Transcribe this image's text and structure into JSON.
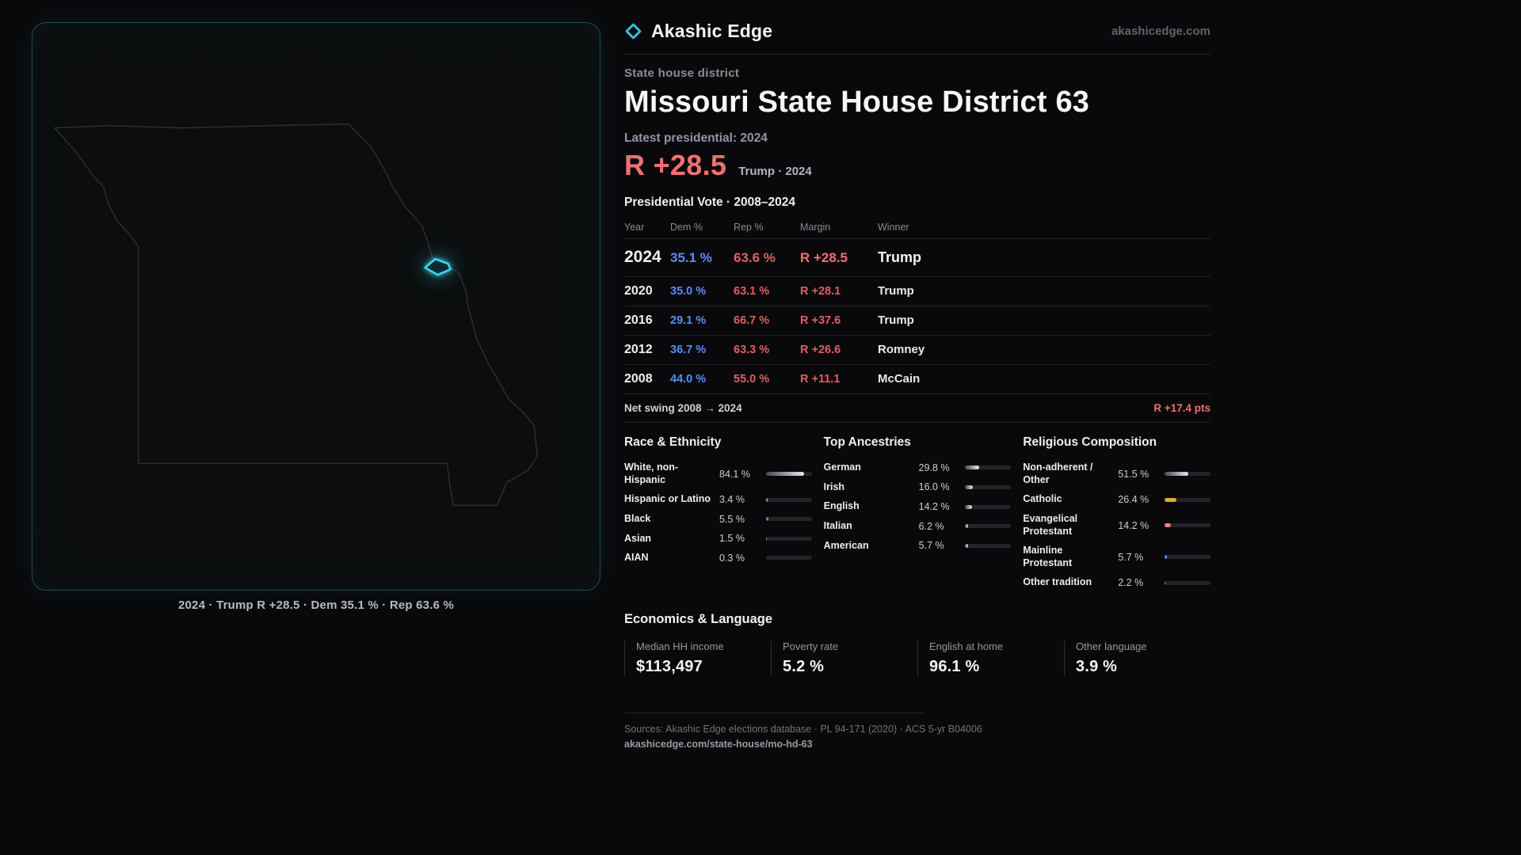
{
  "brand": {
    "name": "Akashic Edge",
    "domain": "akashicedge.com"
  },
  "map": {
    "caption": "2024 · Trump R +28.5 · Dem 35.1 % · Rep 63.6 %",
    "accent": "#3fd6ec",
    "region": "Missouri",
    "marker": "district-63"
  },
  "header": {
    "kicker": "State house district",
    "title": "Missouri State House District 63",
    "latest_label": "Latest presidential: 2024",
    "headline_margin": "R +28.5",
    "headline_sub": "Trump · 2024"
  },
  "chart_data": [
    {
      "id": "presidential-vote",
      "type": "table",
      "title": "Presidential Vote · 2008–2024",
      "columns": {
        "year": "Year",
        "dem": "Dem %",
        "rep": "Rep %",
        "margin": "Margin",
        "winner": "Winner"
      },
      "rows": [
        {
          "year": "2024",
          "dem": "35.1 %",
          "rep": "63.6 %",
          "margin": "R +28.5",
          "winner": "Trump"
        },
        {
          "year": "2020",
          "dem": "35.0 %",
          "rep": "63.1 %",
          "margin": "R +28.1",
          "winner": "Trump"
        },
        {
          "year": "2016",
          "dem": "29.1 %",
          "rep": "66.7 %",
          "margin": "R +37.6",
          "winner": "Trump"
        },
        {
          "year": "2012",
          "dem": "36.7 %",
          "rep": "63.3 %",
          "margin": "R +26.6",
          "winner": "Romney"
        },
        {
          "year": "2008",
          "dem": "44.0 %",
          "rep": "55.0 %",
          "margin": "R +11.1",
          "winner": "McCain"
        }
      ],
      "net_swing_label": "Net swing 2008 → 2024",
      "net_swing_value": "R +17.4 pts"
    },
    {
      "id": "race-ethnicity",
      "type": "bar",
      "title": "Race & Ethnicity",
      "unit": "%",
      "xlim": [
        0,
        100
      ],
      "rows": [
        {
          "label": "White, non-Hispanic",
          "display": "84.1 %",
          "value": 84.1,
          "color": "gradient-gray"
        },
        {
          "label": "Hispanic or Latino",
          "display": "3.4 %",
          "value": 3.4,
          "color": "#e09c3f"
        },
        {
          "label": "Black",
          "display": "5.5 %",
          "value": 5.5,
          "color": "#8f6cf0"
        },
        {
          "label": "Asian",
          "display": "1.5 %",
          "value": 1.5,
          "color": "gradient-gray"
        },
        {
          "label": "AIAN",
          "display": "0.3 %",
          "value": 0.3,
          "color": "gradient-gray"
        }
      ]
    },
    {
      "id": "top-ancestries",
      "type": "bar",
      "title": "Top Ancestries",
      "unit": "%",
      "xlim": [
        0,
        100
      ],
      "rows": [
        {
          "label": "German",
          "display": "29.8 %",
          "value": 29.8,
          "color": "gradient-gray"
        },
        {
          "label": "Irish",
          "display": "16.0 %",
          "value": 16.0,
          "color": "gradient-gray"
        },
        {
          "label": "English",
          "display": "14.2 %",
          "value": 14.2,
          "color": "gradient-gray"
        },
        {
          "label": "Italian",
          "display": "6.2 %",
          "value": 6.2,
          "color": "gradient-gray"
        },
        {
          "label": "American",
          "display": "5.7 %",
          "value": 5.7,
          "color": "gradient-gray"
        }
      ]
    },
    {
      "id": "religious-composition",
      "type": "bar",
      "title": "Religious Composition",
      "unit": "%",
      "xlim": [
        0,
        100
      ],
      "rows": [
        {
          "label": "Non-adherent / Other",
          "display": "51.5 %",
          "value": 51.5,
          "color": "gradient-gray"
        },
        {
          "label": "Catholic",
          "display": "26.4 %",
          "value": 26.4,
          "color": "#e0a83c"
        },
        {
          "label": "Evangelical Protestant",
          "display": "14.2 %",
          "value": 14.2,
          "color": "#ef8080"
        },
        {
          "label": "Mainline Protestant",
          "display": "5.7 %",
          "value": 5.7,
          "color": "#5b8ef0"
        },
        {
          "label": "Other tradition",
          "display": "2.2 %",
          "value": 2.2,
          "color": "gradient-gray"
        }
      ]
    }
  ],
  "economics": {
    "title": "Economics & Language",
    "stats": [
      {
        "label": "Median HH income",
        "value": "$113,497"
      },
      {
        "label": "Poverty rate",
        "value": "5.2 %"
      },
      {
        "label": "English at home",
        "value": "96.1 %"
      },
      {
        "label": "Other language",
        "value": "3.9 %"
      }
    ]
  },
  "footer": {
    "sources": "Sources: Akashic Edge elections database · PL 94-171 (2020) · ACS 5-yr B04006",
    "permalink": "akashicedge.com/state-house/mo-hd-63"
  },
  "colors": {
    "accent": "#3fd6ec",
    "dem": "#5b8ef0",
    "rep": "#ef6e6e"
  }
}
